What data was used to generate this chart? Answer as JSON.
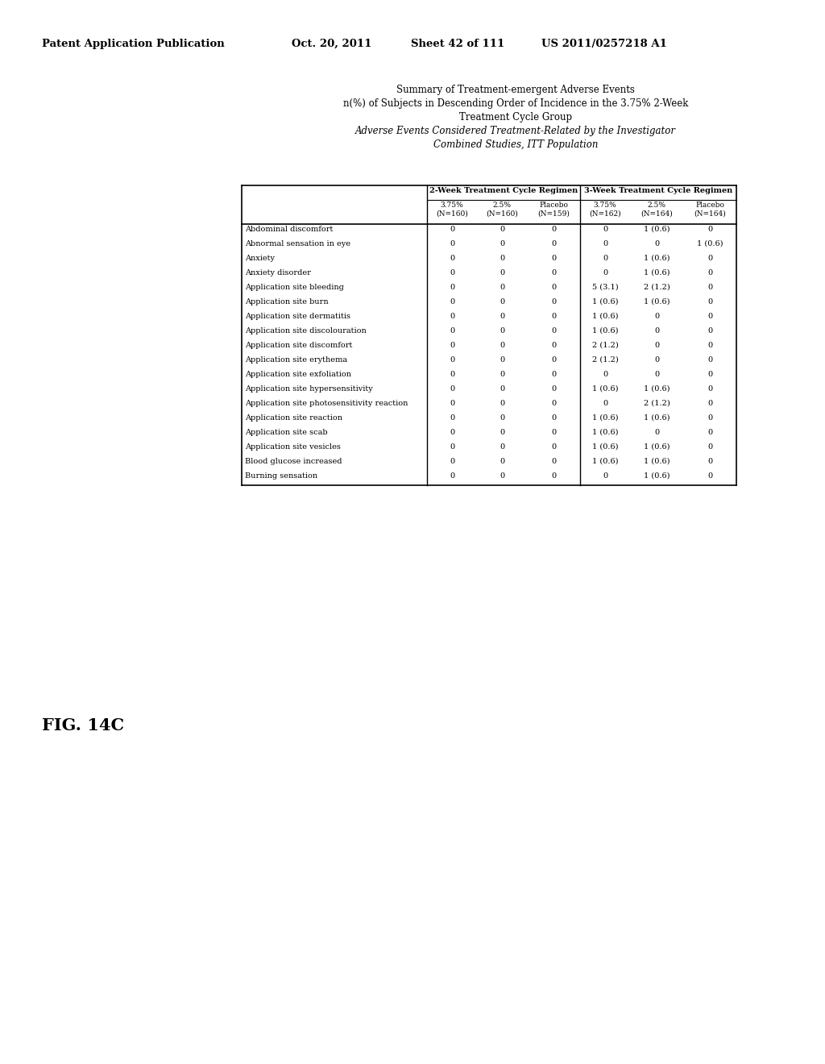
{
  "header_line1": "Patent Application Publication",
  "header_date": "Oct. 20, 2011",
  "header_sheet": "Sheet 42 of 111",
  "header_patent": "US 2011/0257218 A1",
  "fig_label": "FIG. 14C",
  "title_lines": [
    "Summary of Treatment-emergent Adverse Events",
    "n(%) of Subjects in Descending Order of Incidence in the 3.75% 2-Week",
    "Treatment Cycle Group",
    "Adverse Events Considered Treatment-Related by the Investigator",
    "Combined Studies, ITT Population"
  ],
  "title_italic_from": 3,
  "col_group1_label": "2-Week Treatment Cycle Regimen",
  "col_group2_label": "3-Week Treatment Cycle Regimen",
  "sub_headers": [
    "3.75%\n(N=160)",
    "2.5%\n(N=160)",
    "Placebo\n(N=159)",
    "3.75%\n(N=162)",
    "2.5%\n(N=164)",
    "Placebo\n(N=164)"
  ],
  "rows": [
    [
      "Abdominal discomfort",
      "0",
      "0",
      "0",
      "0",
      "1 (0.6)",
      "0"
    ],
    [
      "Abnormal sensation in eye",
      "0",
      "0",
      "0",
      "0",
      "0",
      "1 (0.6)"
    ],
    [
      "Anxiety",
      "0",
      "0",
      "0",
      "0",
      "1 (0.6)",
      "0"
    ],
    [
      "Anxiety disorder",
      "0",
      "0",
      "0",
      "0",
      "1 (0.6)",
      "0"
    ],
    [
      "Application site bleeding",
      "0",
      "0",
      "0",
      "5 (3.1)",
      "2 (1.2)",
      "0"
    ],
    [
      "Application site burn",
      "0",
      "0",
      "0",
      "1 (0.6)",
      "1 (0.6)",
      "0"
    ],
    [
      "Application site dermatitis",
      "0",
      "0",
      "0",
      "1 (0.6)",
      "0",
      "0"
    ],
    [
      "Application site discolouration",
      "0",
      "0",
      "0",
      "1 (0.6)",
      "0",
      "0"
    ],
    [
      "Application site discomfort",
      "0",
      "0",
      "0",
      "2 (1.2)",
      "0",
      "0"
    ],
    [
      "Application site erythema",
      "0",
      "0",
      "0",
      "2 (1.2)",
      "0",
      "0"
    ],
    [
      "Application site exfoliation",
      "0",
      "0",
      "0",
      "0",
      "0",
      "0"
    ],
    [
      "Application site hypersensitivity",
      "0",
      "0",
      "0",
      "1 (0.6)",
      "1 (0.6)",
      "0"
    ],
    [
      "Application site photosensitivity reaction",
      "0",
      "0",
      "0",
      "0",
      "2 (1.2)",
      "0"
    ],
    [
      "Application site reaction",
      "0",
      "0",
      "0",
      "1 (0.6)",
      "1 (0.6)",
      "0"
    ],
    [
      "Application site scab",
      "0",
      "0",
      "0",
      "1 (0.6)",
      "0",
      "0"
    ],
    [
      "Application site vesicles",
      "0",
      "0",
      "0",
      "1 (0.6)",
      "1 (0.6)",
      "0"
    ],
    [
      "Blood glucose increased",
      "0",
      "0",
      "0",
      "1 (0.6)",
      "1 (0.6)",
      "0"
    ],
    [
      "Burning sensation",
      "0",
      "0",
      "0",
      "0",
      "1 (0.6)",
      "0"
    ]
  ],
  "background_color": "#ffffff",
  "text_color": "#000000"
}
